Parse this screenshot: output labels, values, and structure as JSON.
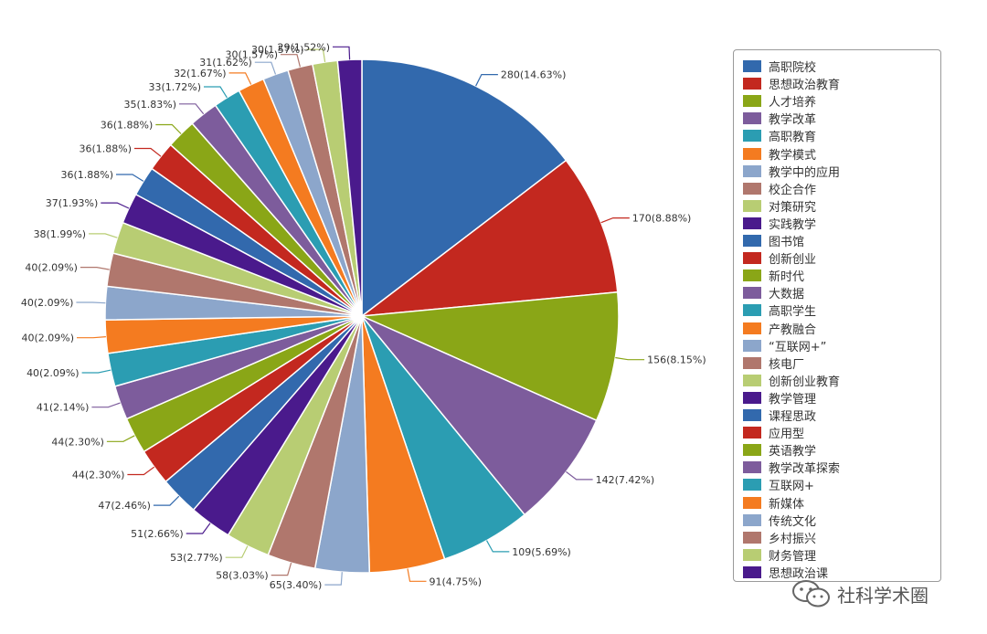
{
  "chart_data": {
    "type": "pie",
    "title": "",
    "slices": [
      {
        "label": "高职院校",
        "value": 280,
        "percent": "14.63%",
        "color": "#3269ad"
      },
      {
        "label": "思想政治教育",
        "value": 170,
        "percent": "8.88%",
        "color": "#c3281f"
      },
      {
        "label": "人才培养",
        "value": 156,
        "percent": "8.15%",
        "color": "#8aa617"
      },
      {
        "label": "教学改革",
        "value": 142,
        "percent": "7.42%",
        "color": "#7d5c9c"
      },
      {
        "label": "高职教育",
        "value": 109,
        "percent": "5.69%",
        "color": "#2b9db2"
      },
      {
        "label": "教学模式",
        "value": 91,
        "percent": "4.75%",
        "color": "#f47b20"
      },
      {
        "label": "教学中的应用",
        "value": 65,
        "percent": "3.40%",
        "color": "#8ca6cb"
      },
      {
        "label": "校企合作",
        "value": 58,
        "percent": "3.03%",
        "color": "#b0776d"
      },
      {
        "label": "对策研究",
        "value": 53,
        "percent": "2.77%",
        "color": "#b8cd73"
      },
      {
        "label": "实践教学",
        "value": 51,
        "percent": "2.66%",
        "color": "#4a1a8c"
      },
      {
        "label": "图书馆",
        "value": 47,
        "percent": "2.46%",
        "color": "#3269ad"
      },
      {
        "label": "创新创业",
        "value": 44,
        "percent": "2.30%",
        "color": "#c3281f"
      },
      {
        "label": "新时代",
        "value": 44,
        "percent": "2.30%",
        "color": "#8aa617"
      },
      {
        "label": "大数据",
        "value": 41,
        "percent": "2.14%",
        "color": "#7d5c9c"
      },
      {
        "label": "高职学生",
        "value": 40,
        "percent": "2.09%",
        "color": "#2b9db2"
      },
      {
        "label": "产教融合",
        "value": 40,
        "percent": "2.09%",
        "color": "#f47b20"
      },
      {
        "label": "“互联网+”",
        "value": 40,
        "percent": "2.09%",
        "color": "#8ca6cb"
      },
      {
        "label": "核电厂",
        "value": 40,
        "percent": "2.09%",
        "color": "#b0776d"
      },
      {
        "label": "创新创业教育",
        "value": 38,
        "percent": "1.99%",
        "color": "#b8cd73"
      },
      {
        "label": "教学管理",
        "value": 37,
        "percent": "1.93%",
        "color": "#4a1a8c"
      },
      {
        "label": "课程思政",
        "value": 36,
        "percent": "1.88%",
        "color": "#3269ad"
      },
      {
        "label": "应用型",
        "value": 36,
        "percent": "1.88%",
        "color": "#c3281f"
      },
      {
        "label": "英语教学",
        "value": 36,
        "percent": "1.88%",
        "color": "#8aa617"
      },
      {
        "label": "教学改革探索",
        "value": 35,
        "percent": "1.83%",
        "color": "#7d5c9c"
      },
      {
        "label": "互联网+",
        "value": 33,
        "percent": "1.72%",
        "color": "#2b9db2"
      },
      {
        "label": "新媒体",
        "value": 32,
        "percent": "1.67%",
        "color": "#f47b20"
      },
      {
        "label": "传统文化",
        "value": 31,
        "percent": "1.62%",
        "color": "#8ca6cb"
      },
      {
        "label": "乡村振兴",
        "value": 30,
        "percent": "1.57%",
        "color": "#b0776d"
      },
      {
        "label": "财务管理",
        "value": 30,
        "percent": "1.57%",
        "color": "#b8cd73"
      },
      {
        "label": "思想政治课",
        "value": 29,
        "percent": "1.52%",
        "color": "#4a1a8c"
      }
    ],
    "legend_position": "right",
    "start": "top, clockwise"
  },
  "watermark": {
    "text": "社科学术圈",
    "icon": "wechat-icon"
  }
}
